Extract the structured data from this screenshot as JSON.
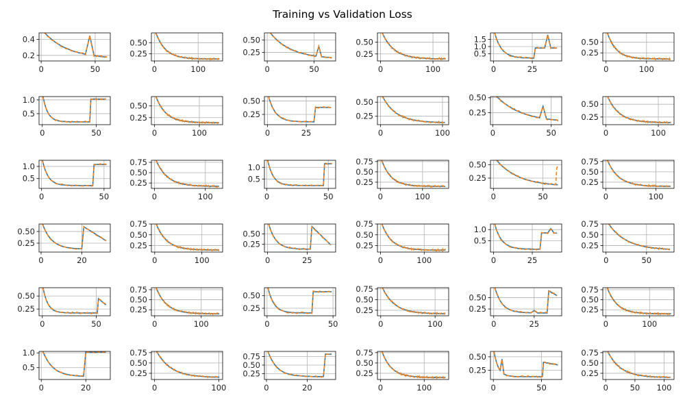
{
  "title": "Training vs Validation Loss",
  "colors": {
    "train": "#1f77b4",
    "val": "#ff7f0e",
    "grid": "#b0b0b0"
  },
  "chart_data": [
    {
      "type": "line",
      "row": 0,
      "col": 0,
      "n": 62,
      "spikes": [
        [
          45,
          0.24,
          3
        ]
      ],
      "xlim": [
        -2,
        64
      ],
      "ylim": [
        0.13,
        0.48
      ],
      "xticks": [
        0,
        50
      ],
      "yticks": [
        0.2,
        0.4
      ],
      "ytick_labels": [
        "0.2",
        "0.4"
      ]
    },
    {
      "type": "line",
      "row": 0,
      "col": 1,
      "n": 150,
      "spikes": [],
      "xlim": [
        -7,
        156
      ],
      "ylim": [
        0.09,
        0.72
      ],
      "xticks": [
        0,
        100
      ],
      "yticks": [
        0.25,
        0.5
      ],
      "ytick_labels": [
        "0.25",
        "0.50"
      ]
    },
    {
      "type": "line",
      "row": 0,
      "col": 2,
      "n": 70,
      "spikes": [
        [
          55,
          0.2,
          2
        ]
      ],
      "xlim": [
        -3,
        73
      ],
      "ylim": [
        0.08,
        0.64
      ],
      "xticks": [
        0,
        50
      ],
      "yticks": [
        0.25,
        0.5
      ],
      "ytick_labels": [
        "0.25",
        "0.50"
      ]
    },
    {
      "type": "line",
      "row": 0,
      "col": 3,
      "n": 125,
      "spikes": [],
      "xlim": [
        -6,
        130
      ],
      "ylim": [
        0.1,
        0.7
      ],
      "xticks": [
        0,
        100
      ],
      "yticks": [
        0.25,
        0.5
      ],
      "ytick_labels": [
        "0.25",
        "0.50"
      ]
    },
    {
      "type": "line",
      "row": 0,
      "col": 4,
      "n": 42,
      "plateau": {
        "start": 27,
        "level": 0.9
      },
      "spikes": [
        [
          35,
          0.9,
          1
        ]
      ],
      "xlim": [
        -2,
        44
      ],
      "ylim": [
        0.0,
        1.95
      ],
      "xticks": [
        0,
        25
      ],
      "yticks": [
        0.5,
        1.0,
        1.5
      ],
      "ytick_labels": [
        "0.5",
        "1.0",
        "1.5"
      ]
    },
    {
      "type": "line",
      "row": 0,
      "col": 5,
      "n": 160,
      "spikes": [],
      "xlim": [
        -8,
        168
      ],
      "ylim": [
        0.06,
        0.72
      ],
      "xticks": [
        0,
        100
      ],
      "yticks": [
        0.25,
        0.5
      ],
      "ytick_labels": [
        "0.25",
        "0.50"
      ]
    },
    {
      "type": "line",
      "row": 1,
      "col": 0,
      "n": 60,
      "plateau": {
        "start": 45,
        "level": 1.03
      },
      "spikes": [],
      "xlim": [
        -3,
        63
      ],
      "ylim": [
        0.1,
        1.12
      ],
      "xticks": [
        0,
        50
      ],
      "yticks": [
        0.5,
        1.0
      ],
      "ytick_labels": [
        "0.5",
        "1.0"
      ]
    },
    {
      "type": "line",
      "row": 1,
      "col": 1,
      "n": 145,
      "spikes": [],
      "xlim": [
        -7,
        152
      ],
      "ylim": [
        0.1,
        0.7
      ],
      "xticks": [
        0,
        100
      ],
      "yticks": [
        0.25,
        0.5
      ],
      "ytick_labels": [
        "0.25",
        "0.50"
      ]
    },
    {
      "type": "line",
      "row": 1,
      "col": 2,
      "n": 42,
      "plateau": {
        "start": 31,
        "level": 0.38
      },
      "spikes": [],
      "xlim": [
        -2,
        44
      ],
      "ylim": [
        0.06,
        0.58
      ],
      "xticks": [
        0,
        25
      ],
      "yticks": [
        0.25,
        0.5
      ],
      "ytick_labels": [
        "0.25",
        "0.50"
      ]
    },
    {
      "type": "line",
      "row": 1,
      "col": 3,
      "n": 105,
      "spikes": [],
      "xlim": [
        -5,
        110
      ],
      "ylim": [
        0.1,
        0.6
      ],
      "xticks": [
        0,
        100
      ],
      "yticks": [
        0.25,
        0.5
      ],
      "ytick_labels": [
        "0.25",
        "0.50"
      ]
    },
    {
      "type": "line",
      "row": 1,
      "col": 4,
      "n": 57,
      "spikes": [
        [
          43,
          0.2,
          2
        ]
      ],
      "xlim": [
        -2,
        59
      ],
      "ylim": [
        0.05,
        0.52
      ],
      "xticks": [
        0,
        50
      ],
      "yticks": [
        0.25,
        0.5
      ],
      "ytick_labels": [
        "0.25",
        "0.50"
      ]
    },
    {
      "type": "line",
      "row": 1,
      "col": 5,
      "n": 125,
      "spikes": [],
      "xlim": [
        -6,
        130
      ],
      "ylim": [
        0.1,
        0.65
      ],
      "xticks": [
        0,
        100
      ],
      "yticks": [
        0.25,
        0.5
      ],
      "ytick_labels": [
        "0.25",
        "0.50"
      ]
    },
    {
      "type": "line",
      "row": 2,
      "col": 0,
      "n": 53,
      "plateau": {
        "start": 42,
        "level": 1.08
      },
      "spikes": [],
      "xlim": [
        -2,
        55
      ],
      "ylim": [
        0.1,
        1.25
      ],
      "xticks": [
        0,
        50
      ],
      "yticks": [
        0.5,
        1.0
      ],
      "ytick_labels": [
        "0.5",
        "1.0"
      ]
    },
    {
      "type": "line",
      "row": 2,
      "col": 1,
      "n": 128,
      "spikes": [],
      "xlim": [
        -6,
        134
      ],
      "ylim": [
        0.12,
        0.8
      ],
      "xticks": [
        0,
        100
      ],
      "yticks": [
        0.25,
        0.5,
        0.75
      ],
      "ytick_labels": [
        "0.25",
        "0.50",
        "0.75"
      ]
    },
    {
      "type": "line",
      "row": 2,
      "col": 2,
      "n": 54,
      "plateau": {
        "start": 47,
        "level": 1.15
      },
      "spikes": [],
      "xlim": [
        -2,
        56
      ],
      "ylim": [
        0.1,
        1.3
      ],
      "xticks": [
        0,
        50
      ],
      "yticks": [
        0.5,
        1.0
      ],
      "ytick_labels": [
        "0.5",
        "1.0"
      ]
    },
    {
      "type": "line",
      "row": 2,
      "col": 3,
      "n": 155,
      "spikes": [],
      "xlim": [
        -7,
        162
      ],
      "ylim": [
        0.1,
        0.78
      ],
      "xticks": [
        0,
        100
      ],
      "yticks": [
        0.25,
        0.5,
        0.75
      ],
      "ytick_labels": [
        "0.25",
        "0.50",
        "0.75"
      ]
    },
    {
      "type": "line",
      "row": 2,
      "col": 4,
      "n": 66,
      "spikes": [],
      "tail": 0.48,
      "xlim": [
        -3,
        69
      ],
      "ylim": [
        0.06,
        0.58
      ],
      "xticks": [
        0,
        50
      ],
      "yticks": [
        0.25,
        0.5
      ],
      "ytick_labels": [
        "0.25",
        "0.50"
      ]
    },
    {
      "type": "line",
      "row": 2,
      "col": 5,
      "n": 130,
      "spikes": [],
      "xlim": [
        -6,
        136
      ],
      "ylim": [
        0.1,
        0.78
      ],
      "xticks": [
        0,
        100
      ],
      "yticks": [
        0.25,
        0.5,
        0.75
      ],
      "ytick_labels": [
        "0.25",
        "0.50",
        "0.75"
      ]
    },
    {
      "type": "line",
      "row": 3,
      "col": 0,
      "n": 33,
      "plateau": {
        "start": 21,
        "level": 0.6,
        "decay": 0.3
      },
      "spikes": [],
      "xlim": [
        -1,
        34
      ],
      "ylim": [
        0.06,
        0.66
      ],
      "xticks": [
        0,
        20
      ],
      "yticks": [
        0.25,
        0.5
      ],
      "ytick_labels": [
        "0.25",
        "0.50"
      ]
    },
    {
      "type": "line",
      "row": 3,
      "col": 1,
      "n": 138,
      "spikes": [],
      "xlim": [
        -7,
        144
      ],
      "ylim": [
        0.1,
        0.75
      ],
      "xticks": [
        0,
        100
      ],
      "yticks": [
        0.25,
        0.5,
        0.75
      ],
      "ytick_labels": [
        "0.25",
        "0.50",
        "0.75"
      ]
    },
    {
      "type": "line",
      "row": 3,
      "col": 2,
      "n": 41,
      "plateau": {
        "start": 28,
        "level": 0.68,
        "decay": 0.45
      },
      "spikes": [],
      "xlim": [
        -2,
        43
      ],
      "ylim": [
        0.06,
        0.74
      ],
      "xticks": [
        0,
        25
      ],
      "yticks": [
        0.25,
        0.5
      ],
      "ytick_labels": [
        "0.25",
        "0.50"
      ]
    },
    {
      "type": "line",
      "row": 3,
      "col": 3,
      "n": 150,
      "spikes": [],
      "xlim": [
        -7,
        156
      ],
      "ylim": [
        0.1,
        0.75
      ],
      "xticks": [
        0,
        100
      ],
      "yticks": [
        0.25,
        0.5,
        0.75
      ],
      "ytick_labels": [
        "0.25",
        "0.50",
        "0.75"
      ]
    },
    {
      "type": "line",
      "row": 3,
      "col": 4,
      "n": 42,
      "plateau": {
        "start": 31,
        "level": 0.85
      },
      "spikes": [
        [
          37,
          0.2,
          1
        ]
      ],
      "xlim": [
        -2,
        44
      ],
      "ylim": [
        0.0,
        1.25
      ],
      "xticks": [
        0,
        25
      ],
      "yticks": [
        0.5,
        1.0
      ],
      "ytick_labels": [
        "0.5",
        "1.0"
      ]
    },
    {
      "type": "line",
      "row": 3,
      "col": 5,
      "n": 80,
      "spikes": [],
      "xlim": [
        -4,
        84
      ],
      "ylim": [
        0.1,
        0.75
      ],
      "xticks": [
        0,
        50
      ],
      "yticks": [
        0.25,
        0.5,
        0.75
      ],
      "ytick_labels": [
        "0.25",
        "0.50",
        "0.75"
      ]
    },
    {
      "type": "line",
      "row": 4,
      "col": 0,
      "n": 60,
      "plateau": {
        "start": 52,
        "level": 0.45,
        "decay": 0.12
      },
      "spikes": [],
      "xlim": [
        -3,
        63
      ],
      "ylim": [
        0.12,
        0.66
      ],
      "xticks": [
        0,
        50
      ],
      "yticks": [
        0.25,
        0.5
      ],
      "ytick_labels": [
        "0.25",
        "0.50"
      ]
    },
    {
      "type": "line",
      "row": 4,
      "col": 1,
      "n": 140,
      "spikes": [],
      "xlim": [
        -7,
        146
      ],
      "ylim": [
        0.1,
        0.8
      ],
      "xticks": [
        0,
        100
      ],
      "yticks": [
        0.25,
        0.5,
        0.75
      ],
      "ytick_labels": [
        "0.25",
        "0.50",
        "0.75"
      ]
    },
    {
      "type": "line",
      "row": 4,
      "col": 2,
      "n": 50,
      "plateau": {
        "start": 35,
        "level": 0.58
      },
      "spikes": [],
      "xlim": [
        -2,
        52
      ],
      "ylim": [
        0.1,
        0.66
      ],
      "xticks": [
        0,
        50
      ],
      "yticks": [
        0.25,
        0.5
      ],
      "ytick_labels": [
        "0.25",
        "0.50"
      ]
    },
    {
      "type": "line",
      "row": 4,
      "col": 3,
      "n": 120,
      "spikes": [],
      "xlim": [
        -6,
        125
      ],
      "ylim": [
        0.12,
        0.78
      ],
      "xticks": [
        0,
        100
      ],
      "yticks": [
        0.25,
        0.5,
        0.75
      ],
      "ytick_labels": [
        "0.25",
        "0.50",
        "0.75"
      ]
    },
    {
      "type": "line",
      "row": 4,
      "col": 4,
      "n": 40,
      "plateau": {
        "start": 34,
        "level": 0.65,
        "decay": 0.1
      },
      "spikes": [
        [
          25,
          0.05,
          1
        ]
      ],
      "xlim": [
        -2,
        42
      ],
      "ylim": [
        0.1,
        0.72
      ],
      "xticks": [
        0,
        25
      ],
      "yticks": [
        0.25,
        0.5
      ],
      "ytick_labels": [
        "0.25",
        "0.50"
      ]
    },
    {
      "type": "line",
      "row": 4,
      "col": 5,
      "n": 150,
      "spikes": [],
      "xlim": [
        -7,
        156
      ],
      "ylim": [
        0.1,
        0.8
      ],
      "xticks": [
        0,
        100
      ],
      "yticks": [
        0.25,
        0.5,
        0.75
      ],
      "ytick_labels": [
        "0.25",
        "0.50",
        "0.75"
      ]
    },
    {
      "type": "line",
      "row": 5,
      "col": 0,
      "n": 30,
      "plateau": {
        "start": 20,
        "level": 1.02
      },
      "spikes": [],
      "xlim": [
        -1,
        31
      ],
      "ylim": [
        0.1,
        1.05
      ],
      "xticks": [
        0,
        20
      ],
      "yticks": [
        0.5,
        1.0
      ],
      "ytick_labels": [
        "0.5",
        "1.0"
      ]
    },
    {
      "type": "line",
      "row": 5,
      "col": 1,
      "n": 102,
      "spikes": [],
      "xlim": [
        -5,
        106
      ],
      "ylim": [
        0.1,
        0.78
      ],
      "xticks": [
        0,
        100
      ],
      "yticks": [
        0.25,
        0.5,
        0.75
      ],
      "ytick_labels": [
        "0.25",
        "0.50",
        "0.75"
      ]
    },
    {
      "type": "line",
      "row": 5,
      "col": 2,
      "n": 33,
      "plateau": {
        "start": 29,
        "level": 0.82
      },
      "spikes": [],
      "xlim": [
        -1,
        34
      ],
      "ylim": [
        0.08,
        0.9
      ],
      "xticks": [
        0,
        20
      ],
      "yticks": [
        0.25,
        0.5,
        0.75
      ],
      "ytick_labels": [
        "0.25",
        "0.50",
        "0.75"
      ]
    },
    {
      "type": "line",
      "row": 5,
      "col": 3,
      "n": 150,
      "spikes": [],
      "xlim": [
        -7,
        156
      ],
      "ylim": [
        0.1,
        0.78
      ],
      "xticks": [
        0,
        100
      ],
      "yticks": [
        0.25,
        0.5,
        0.75
      ],
      "ytick_labels": [
        "0.25",
        "0.50",
        "0.75"
      ]
    },
    {
      "type": "line",
      "row": 5,
      "col": 4,
      "n": 68,
      "plateau": {
        "start": 52,
        "level": 0.4,
        "decay": 0.05
      },
      "spikes": [
        [
          9,
          0.25,
          1
        ]
      ],
      "xlim": [
        -3,
        71
      ],
      "ylim": [
        0.08,
        0.6
      ],
      "xticks": [
        0,
        50
      ],
      "yticks": [
        0.25,
        0.5
      ],
      "ytick_labels": [
        "0.25",
        "0.50"
      ]
    },
    {
      "type": "line",
      "row": 5,
      "col": 5,
      "n": 112,
      "spikes": [],
      "xlim": [
        -5,
        117
      ],
      "ylim": [
        0.1,
        0.78
      ],
      "xticks": [
        0,
        50,
        100
      ],
      "yticks": [
        0.25,
        0.5,
        0.75
      ],
      "ytick_labels": [
        "0.25",
        "0.50",
        "0.75"
      ]
    }
  ]
}
